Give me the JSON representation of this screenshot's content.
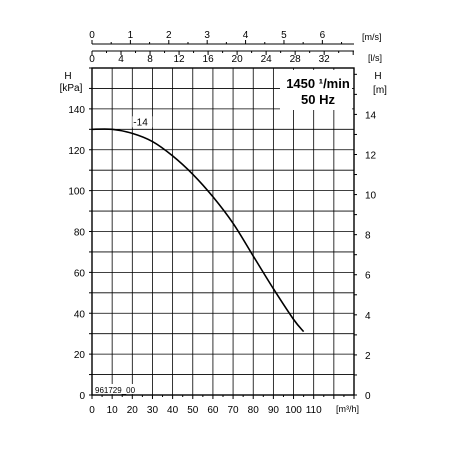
{
  "chart_data": {
    "type": "line",
    "speed_label": "1450 ¹/min",
    "frequency_label": "50 Hz",
    "drawing_id": "961729_00",
    "series": [
      {
        "name": "-14",
        "x": [
          0,
          10,
          20,
          30,
          40,
          50,
          60,
          70,
          80,
          90,
          100,
          105
        ],
        "y": [
          130,
          130,
          128,
          124,
          117,
          108,
          97,
          84,
          68,
          52,
          37,
          31
        ]
      }
    ],
    "x_axis_bottom": {
      "unit": "[m³/h]",
      "ticks": [
        "0",
        "10",
        "20",
        "30",
        "40",
        "50",
        "60",
        "70",
        "80",
        "90",
        "100",
        "110"
      ],
      "range": [
        0,
        130
      ]
    },
    "x_axis_top_flow": {
      "unit": "[l/s]",
      "ticks": [
        "0",
        "4",
        "8",
        "12",
        "16",
        "20",
        "24",
        "28",
        "32"
      ]
    },
    "x_axis_top_velocity": {
      "unit": "[m/s]",
      "ticks": [
        "0",
        "1",
        "2",
        "3",
        "4",
        "5",
        "6"
      ]
    },
    "y_axis_left": {
      "title": "H",
      "unit": "[kPa]",
      "ticks": [
        "0",
        "20",
        "40",
        "60",
        "80",
        "100",
        "120",
        "140"
      ],
      "range": [
        0,
        160
      ]
    },
    "y_axis_right": {
      "title": "H",
      "unit": "[m]",
      "ticks": [
        "0",
        "2",
        "4",
        "6",
        "8",
        "10",
        "12",
        "14"
      ]
    },
    "grid": true
  }
}
